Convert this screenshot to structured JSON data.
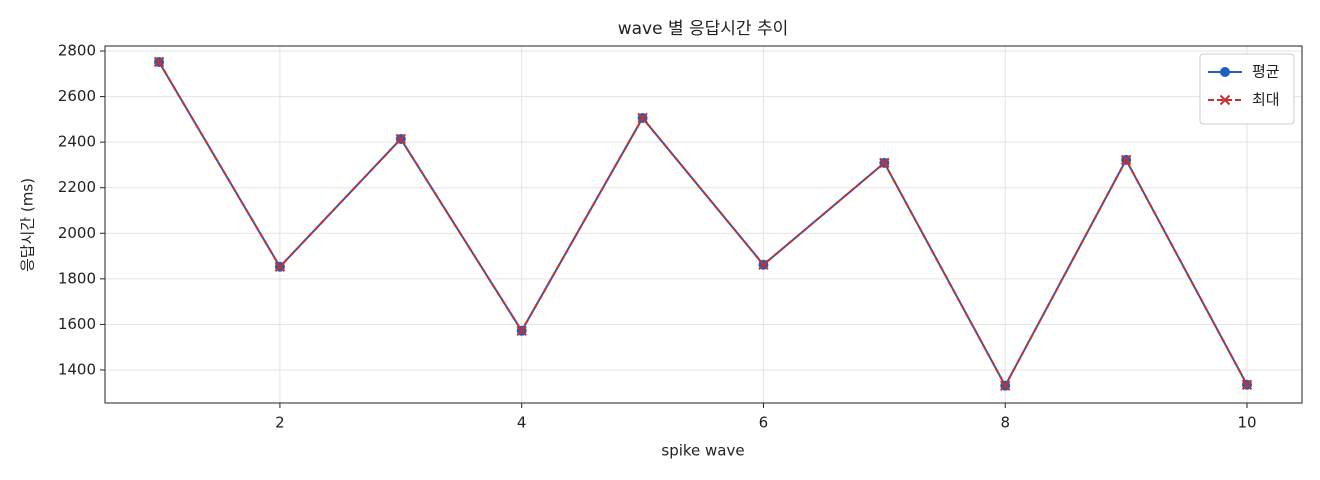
{
  "chart_data": {
    "type": "line",
    "title": "wave 별 응답시간 추이",
    "x_label": "spike wave",
    "y_label": "응답시간 (ms)",
    "x": [
      1,
      2,
      3,
      4,
      5,
      6,
      7,
      8,
      9,
      10
    ],
    "series": [
      {
        "name": "평균",
        "color": "#1f5fbf",
        "linestyle": "solid",
        "marker": "o",
        "values": [
          2752,
          1853,
          2414,
          1572,
          2506,
          1862,
          2309,
          1331,
          2322,
          1335
        ]
      },
      {
        "name": "최대",
        "color": "#c9302c",
        "linestyle": "dashed",
        "marker": "x",
        "values": [
          2752,
          1853,
          2414,
          1572,
          2506,
          1862,
          2309,
          1331,
          2322,
          1335
        ]
      }
    ],
    "xlim": [
      0.553,
      10.455
    ],
    "ylim": [
      1255,
      2822
    ],
    "xticks": [
      2,
      4,
      6,
      8,
      10
    ],
    "yticks": [
      1400,
      1600,
      1800,
      2000,
      2200,
      2400,
      2600,
      2800
    ],
    "grid": true,
    "legend": "upper right"
  }
}
